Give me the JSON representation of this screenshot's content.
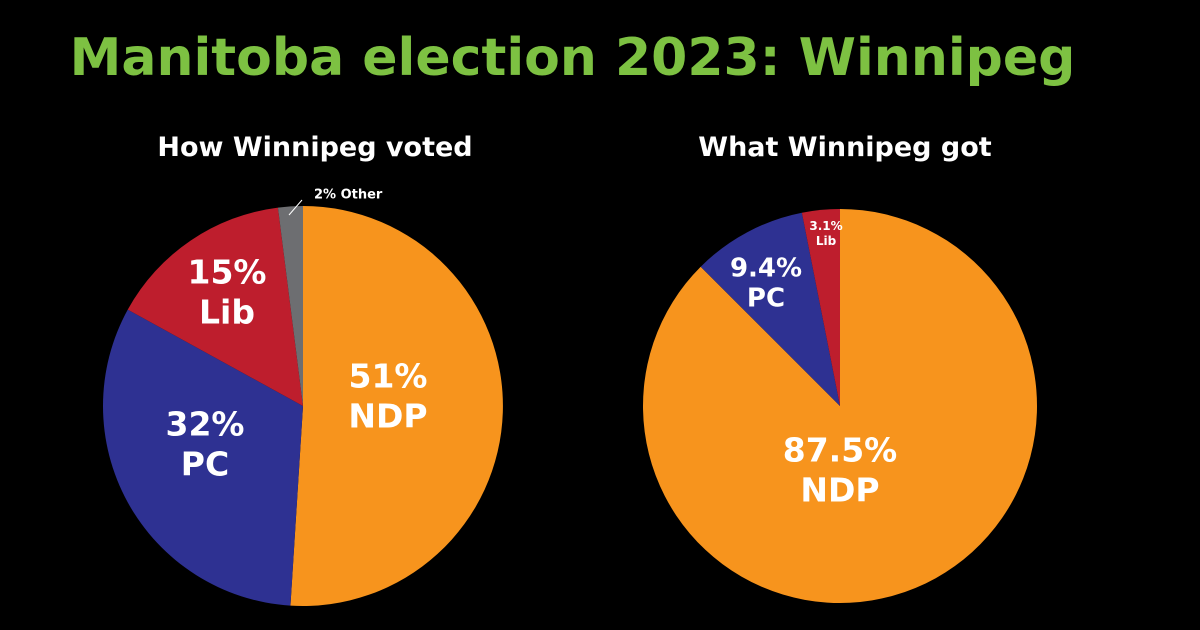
{
  "title": "Manitoba election 2023: Winnipeg",
  "chart_data": [
    {
      "type": "pie",
      "title": "How Winnipeg voted",
      "slices": [
        {
          "label": "NDP",
          "value": 51,
          "display": "51%",
          "color": "#f7941d"
        },
        {
          "label": "PC",
          "value": 32,
          "display": "32%",
          "color": "#2e3192"
        },
        {
          "label": "Lib",
          "value": 15,
          "display": "15%",
          "color": "#be1e2d"
        },
        {
          "label": "Other",
          "value": 2,
          "display": "2%",
          "color": "#6d6e71"
        }
      ]
    },
    {
      "type": "pie",
      "title": "What Winnipeg got",
      "slices": [
        {
          "label": "NDP",
          "value": 87.5,
          "display": "87.5%",
          "color": "#f7941d"
        },
        {
          "label": "PC",
          "value": 9.4,
          "display": "9.4%",
          "color": "#2e3192"
        },
        {
          "label": "Lib",
          "value": 3.1,
          "display": "3.1%",
          "color": "#be1e2d"
        }
      ]
    }
  ]
}
